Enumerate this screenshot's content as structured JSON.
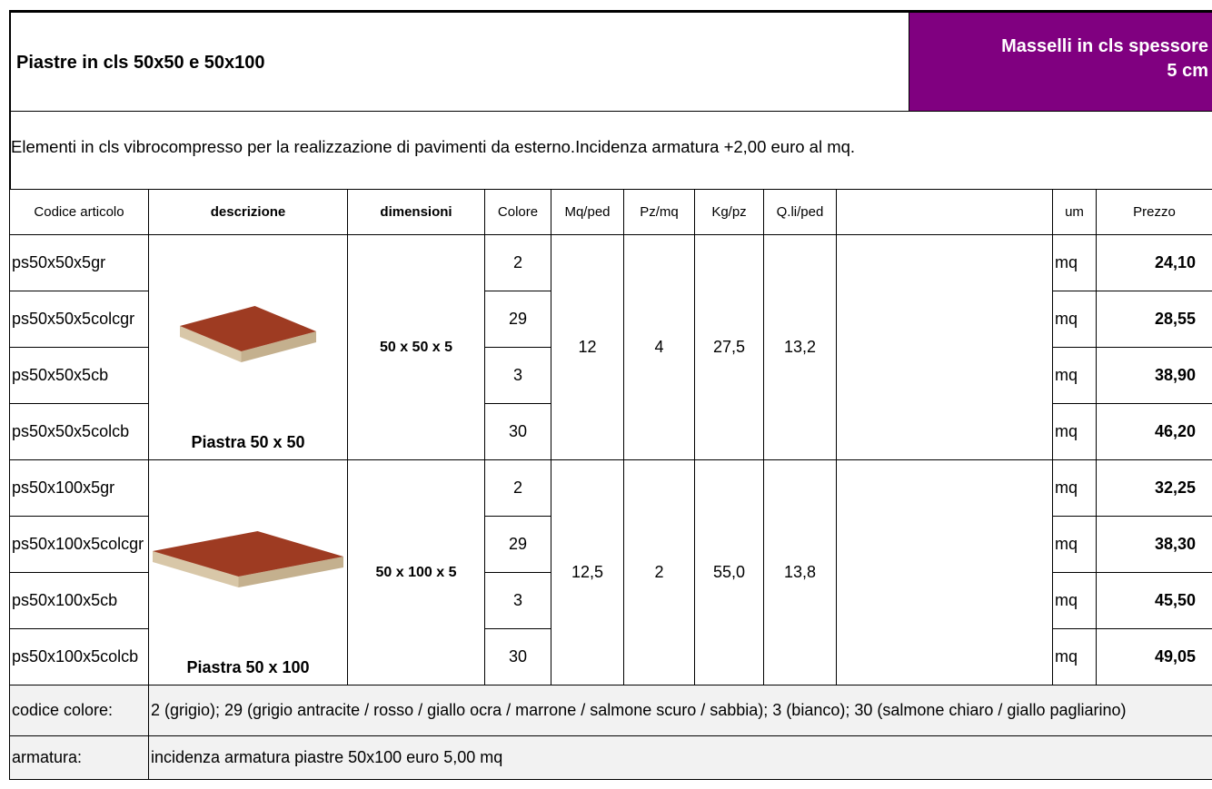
{
  "header": {
    "title": "Piastre in cls 50x50 e 50x100",
    "badge_lines": [
      "Masselli in cls spessore",
      "5 cm"
    ]
  },
  "description": "Elementi in cls vibrocompresso per la realizzazione di pavimenti da esterno.Incidenza armatura +2,00 euro al mq.",
  "table": {
    "headers": [
      "Codice articolo",
      "descrizione",
      "dimensioni",
      "Colore",
      "Mq/ped",
      "Pz/mq",
      "Kg/pz",
      "Q.li/ped",
      "um",
      "Prezzo"
    ],
    "groups": [
      {
        "description": "Piastra 50 x 50",
        "dimensions": "50 x 50 x 5",
        "mq_ped": "12",
        "pz_mq": "4",
        "kg_pz": "27,5",
        "qli_ped": "13,2",
        "rows": [
          {
            "code": "ps50x50x5gr",
            "colore": "2",
            "um": "mq",
            "price": "24,10"
          },
          {
            "code": "ps50x50x5colcgr",
            "colore": "29",
            "um": "mq",
            "price": "28,55"
          },
          {
            "code": "ps50x50x5cb",
            "colore": "3",
            "um": "mq",
            "price": "38,90"
          },
          {
            "code": "ps50x50x5colcb",
            "colore": "30",
            "um": "mq",
            "price": "46,20"
          }
        ]
      },
      {
        "description": "Piastra 50 x 100",
        "dimensions": "50 x 100 x 5",
        "mq_ped": "12,5",
        "pz_mq": "2",
        "kg_pz": "55,0",
        "qli_ped": "13,8",
        "rows": [
          {
            "code": "ps50x100x5gr",
            "colore": "2",
            "um": "mq",
            "price": "32,25"
          },
          {
            "code": "ps50x100x5colcgr",
            "colore": "29",
            "um": "mq",
            "price": "38,30"
          },
          {
            "code": "ps50x100x5cb",
            "colore": "3",
            "um": "mq",
            "price": "45,50"
          },
          {
            "code": "ps50x100x5colcb",
            "colore": "30",
            "um": "mq",
            "price": "49,05"
          }
        ]
      }
    ]
  },
  "notes": [
    {
      "label": "codice colore:",
      "text": "2 (grigio); 29 (grigio antracite / rosso / giallo ocra / marrone / salmone scuro / sabbia); 3 (bianco); 30 (salmone chiaro / giallo pagliarino)"
    },
    {
      "label": "armatura:",
      "text": "incidenza armatura piastre 50x100 euro 5,00 mq"
    }
  ]
}
